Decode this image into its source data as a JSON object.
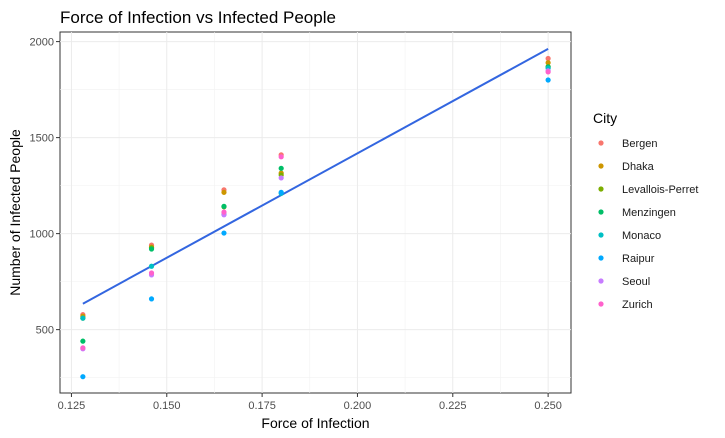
{
  "chart_data": {
    "type": "scatter",
    "title": "Force of Infection vs Infected People",
    "xlabel": "Force of Infection",
    "ylabel": "Number of Infected People",
    "xlim": [
      0.122,
      0.256
    ],
    "ylim": [
      170,
      2050
    ],
    "xticks": [
      0.125,
      0.15,
      0.175,
      0.2,
      0.225,
      0.25
    ],
    "xtick_labels": [
      "0.125",
      "0.150",
      "0.175",
      "0.200",
      "0.225",
      "0.250"
    ],
    "yticks": [
      500,
      1000,
      1500,
      2000
    ],
    "ytick_labels": [
      "500",
      "1000",
      "1500",
      "2000"
    ],
    "grid": true,
    "legend": {
      "title": "City",
      "position": "right"
    },
    "series": [
      {
        "name": "Bergen",
        "color": "#F8766D",
        "points": [
          [
            0.128,
            578
          ],
          [
            0.146,
            940
          ],
          [
            0.165,
            1228
          ],
          [
            0.18,
            1410
          ],
          [
            0.25,
            1912
          ]
        ]
      },
      {
        "name": "Dhaka",
        "color": "#CD9600",
        "points": [
          [
            0.128,
            570
          ],
          [
            0.146,
            930
          ],
          [
            0.165,
            1215
          ],
          [
            0.18,
            1315
          ],
          [
            0.25,
            1890
          ]
        ]
      },
      {
        "name": "Levallois-Perret",
        "color": "#7CAE00",
        "points": [
          [
            0.128,
            560
          ],
          [
            0.146,
            925
          ],
          [
            0.165,
            1140
          ],
          [
            0.18,
            1305
          ],
          [
            0.25,
            1870
          ]
        ]
      },
      {
        "name": "Menzingen",
        "color": "#00BE67",
        "points": [
          [
            0.128,
            440
          ],
          [
            0.146,
            920
          ],
          [
            0.165,
            1142
          ],
          [
            0.18,
            1340
          ],
          [
            0.25,
            1868
          ]
        ]
      },
      {
        "name": "Monaco",
        "color": "#00BFC4",
        "points": [
          [
            0.128,
            560
          ],
          [
            0.146,
            830
          ],
          [
            0.165,
            1100
          ],
          [
            0.18,
            1210
          ],
          [
            0.25,
            1862
          ]
        ]
      },
      {
        "name": "Raipur",
        "color": "#00A9FF",
        "points": [
          [
            0.128,
            255
          ],
          [
            0.146,
            660
          ],
          [
            0.165,
            1003
          ],
          [
            0.18,
            1215
          ],
          [
            0.25,
            1800
          ]
        ]
      },
      {
        "name": "Seoul",
        "color": "#C77CFF",
        "points": [
          [
            0.128,
            400
          ],
          [
            0.146,
            785
          ],
          [
            0.165,
            1098
          ],
          [
            0.18,
            1290
          ],
          [
            0.25,
            1848
          ]
        ]
      },
      {
        "name": "Zurich",
        "color": "#FF61CC",
        "points": [
          [
            0.128,
            405
          ],
          [
            0.146,
            795
          ],
          [
            0.165,
            1112
          ],
          [
            0.18,
            1400
          ],
          [
            0.25,
            1842
          ]
        ]
      }
    ],
    "trendline": {
      "type": "linear",
      "color": "#3366E0",
      "x": [
        0.128,
        0.25
      ],
      "y": [
        635,
        1962
      ]
    }
  }
}
